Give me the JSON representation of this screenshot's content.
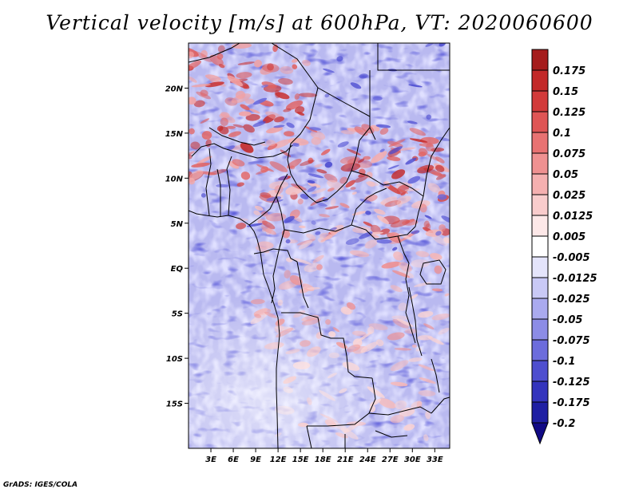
{
  "title": "Vertical velocity [m/s] at 600hPa, VT: 2020060600",
  "credit": "GrADS: IGES/COLA",
  "map": {
    "lon_range": [
      0,
      35
    ],
    "lat_range": [
      -20,
      25
    ],
    "lon_ticks": [
      {
        "value": 3,
        "label": "3E"
      },
      {
        "value": 6,
        "label": "6E"
      },
      {
        "value": 9,
        "label": "9E"
      },
      {
        "value": 12,
        "label": "12E"
      },
      {
        "value": 15,
        "label": "15E"
      },
      {
        "value": 18,
        "label": "18E"
      },
      {
        "value": 21,
        "label": "21E"
      },
      {
        "value": 24,
        "label": "24E"
      },
      {
        "value": 27,
        "label": "27E"
      },
      {
        "value": 30,
        "label": "30E"
      },
      {
        "value": 33,
        "label": "33E"
      }
    ],
    "lat_ticks": [
      {
        "value": 20,
        "label": "20N"
      },
      {
        "value": 15,
        "label": "15N"
      },
      {
        "value": 10,
        "label": "10N"
      },
      {
        "value": 5,
        "label": "5N"
      },
      {
        "value": 0,
        "label": "EQ"
      },
      {
        "value": -5,
        "label": "5S"
      },
      {
        "value": -10,
        "label": "10S"
      },
      {
        "value": -15,
        "label": "15S"
      }
    ]
  },
  "colorbar": {
    "labels": [
      "0.175",
      "0.15",
      "0.125",
      "0.1",
      "0.075",
      "0.05",
      "0.025",
      "0.0125",
      "0.005",
      "-0.005",
      "-0.0125",
      "-0.025",
      "-0.05",
      "-0.075",
      "-0.1",
      "-0.125",
      "-0.175",
      "-0.2"
    ],
    "colors": [
      "#a51c1c",
      "#c22828",
      "#d23a3a",
      "#df5555",
      "#e87272",
      "#ef9191",
      "#f5b0b0",
      "#f9cccc",
      "#fde8e8",
      "#ffffff",
      "#e4e4fb",
      "#c9c9f6",
      "#aaaaef",
      "#8c8ce6",
      "#6c6cdc",
      "#4e4ecf",
      "#3434bd",
      "#1f1fa3",
      "#110a85"
    ]
  }
}
